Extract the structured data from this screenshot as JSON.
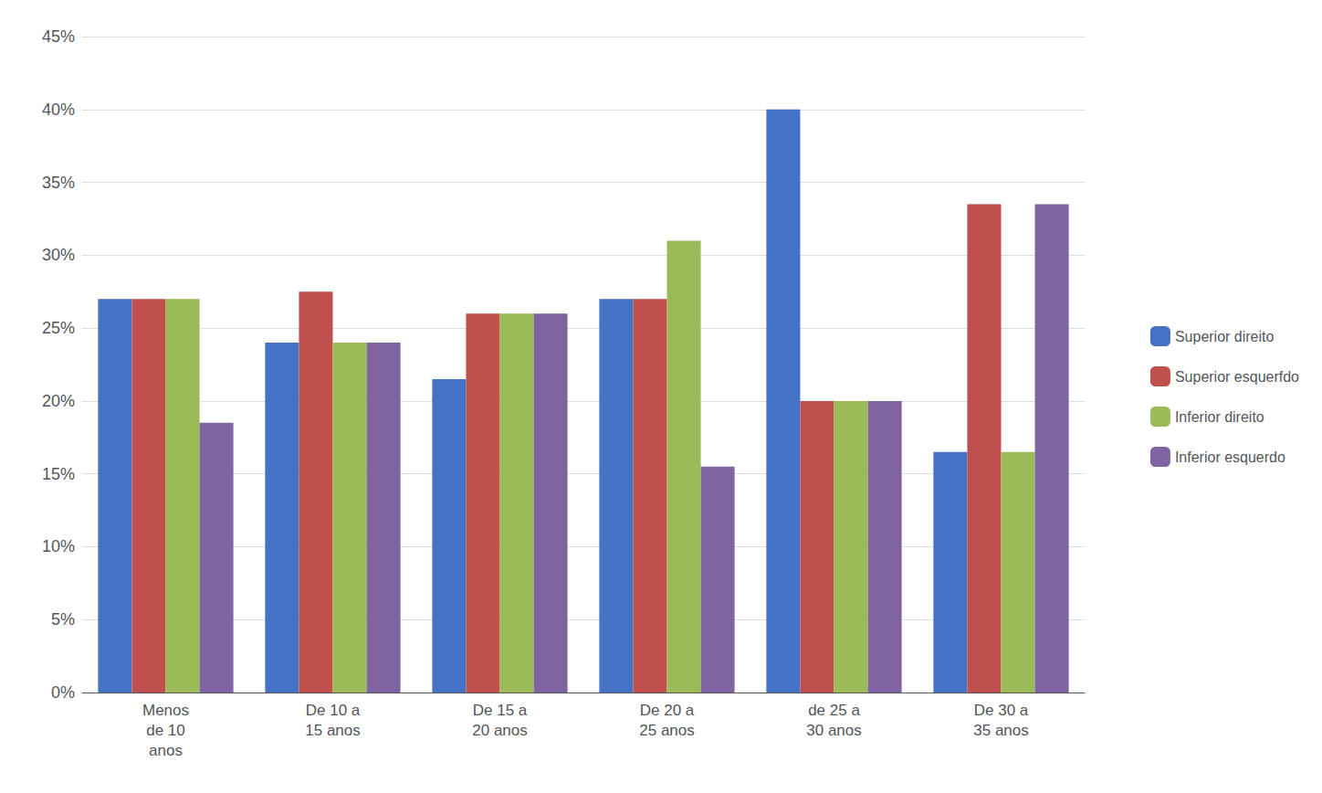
{
  "chart_data": {
    "type": "bar",
    "categories": [
      "Menos\nde 10\nanos",
      "De 10 a\n15 anos",
      "De 15 a\n20 anos",
      "De 20 a\n25 anos",
      "de 25 a\n30 anos",
      "De 30 a\n35 anos"
    ],
    "series": [
      {
        "name": "Superior direito",
        "color": "#4472C4",
        "values": [
          0.27,
          0.24,
          0.215,
          0.27,
          0.4,
          0.165
        ]
      },
      {
        "name": "Superior esquerfdo",
        "color": "#C0504D",
        "values": [
          0.27,
          0.275,
          0.26,
          0.27,
          0.2,
          0.335
        ]
      },
      {
        "name": "Inferior direito",
        "color": "#9BBB59",
        "values": [
          0.27,
          0.24,
          0.26,
          0.31,
          0.2,
          0.165
        ]
      },
      {
        "name": "Inferior esquerdo",
        "color": "#8064A2",
        "values": [
          0.185,
          0.24,
          0.26,
          0.155,
          0.2,
          0.335
        ]
      }
    ],
    "ylim": [
      0,
      0.45
    ],
    "yticks": [
      {
        "value": 0.0,
        "label": "0%"
      },
      {
        "value": 0.05,
        "label": "5%"
      },
      {
        "value": 0.1,
        "label": "10%"
      },
      {
        "value": 0.15,
        "label": "15%"
      },
      {
        "value": 0.2,
        "label": "20%"
      },
      {
        "value": 0.25,
        "label": "25%"
      },
      {
        "value": 0.3,
        "label": "30%"
      },
      {
        "value": 0.35,
        "label": "35%"
      },
      {
        "value": 0.4,
        "label": "40%"
      },
      {
        "value": 0.45,
        "label": "45%"
      }
    ],
    "grid": true,
    "legend": "right"
  }
}
